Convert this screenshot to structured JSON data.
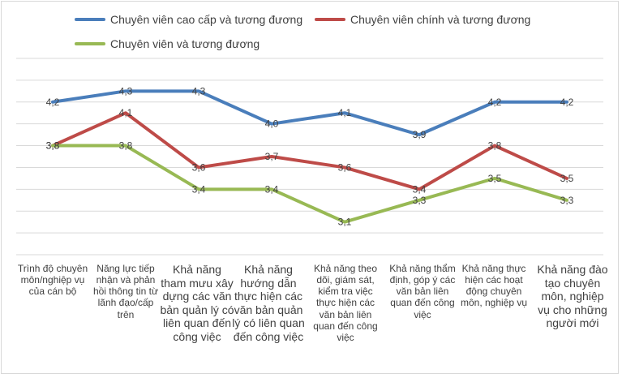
{
  "chart_data": {
    "type": "line",
    "title": "",
    "xlabel": "",
    "ylabel": "",
    "ylim": [
      2.8,
      4.6
    ],
    "grid": true,
    "legend_position": "top",
    "categories": [
      "Trình độ chuyên môn/nghiệp vụ của cán bộ",
      "Năng lực tiếp nhận và phản hồi thông tin từ lãnh đạo/cấp trên",
      "Khả năng tham mưu xây dựng các văn bản quản lý có liên quan đến công việc",
      "Khả năng hướng dẫn thực hiện các văn bản quản lý có liên quan đến công việc",
      "Khả năng theo dõi, giám sát, kiểm tra việc thực hiện các văn bản liên quan đến công việc",
      "Khả năng thẩm định, góp ý các văn bản liên quan đến công việc",
      "Khả năng thực hiện các hoạt động chuyên môn, nghiệp vụ",
      "Khả năng đào tạo chuyên môn, nghiệp vụ cho những người mới"
    ],
    "series": [
      {
        "name": "Chuyên viên cao cấp và tương đương",
        "color": "#4a7ebb",
        "values": [
          4.2,
          4.3,
          4.3,
          4.0,
          4.1,
          3.9,
          4.2,
          4.2
        ],
        "labels": [
          "4,2",
          "4,3",
          "4,3",
          "4,0",
          "4,1",
          "3,9",
          "4,2",
          "4,2"
        ]
      },
      {
        "name": "Chuyên viên chính và tương đương",
        "color": "#be4b48",
        "values": [
          3.8,
          4.1,
          3.6,
          3.7,
          3.6,
          3.4,
          3.8,
          3.5
        ],
        "labels": [
          "3,8",
          "4,1",
          "3,6",
          "3,7",
          "3,6",
          "3,4",
          "3,8",
          "3,5"
        ]
      },
      {
        "name": "Chuyên viên và tương đương",
        "color": "#98b954",
        "values": [
          3.8,
          3.8,
          3.4,
          3.4,
          3.1,
          3.3,
          3.5,
          3.3
        ],
        "labels": [
          "3,8",
          "3,8",
          "3,4",
          "3,4",
          "3,1",
          "3,3",
          "3,5",
          "3,3"
        ]
      }
    ]
  }
}
